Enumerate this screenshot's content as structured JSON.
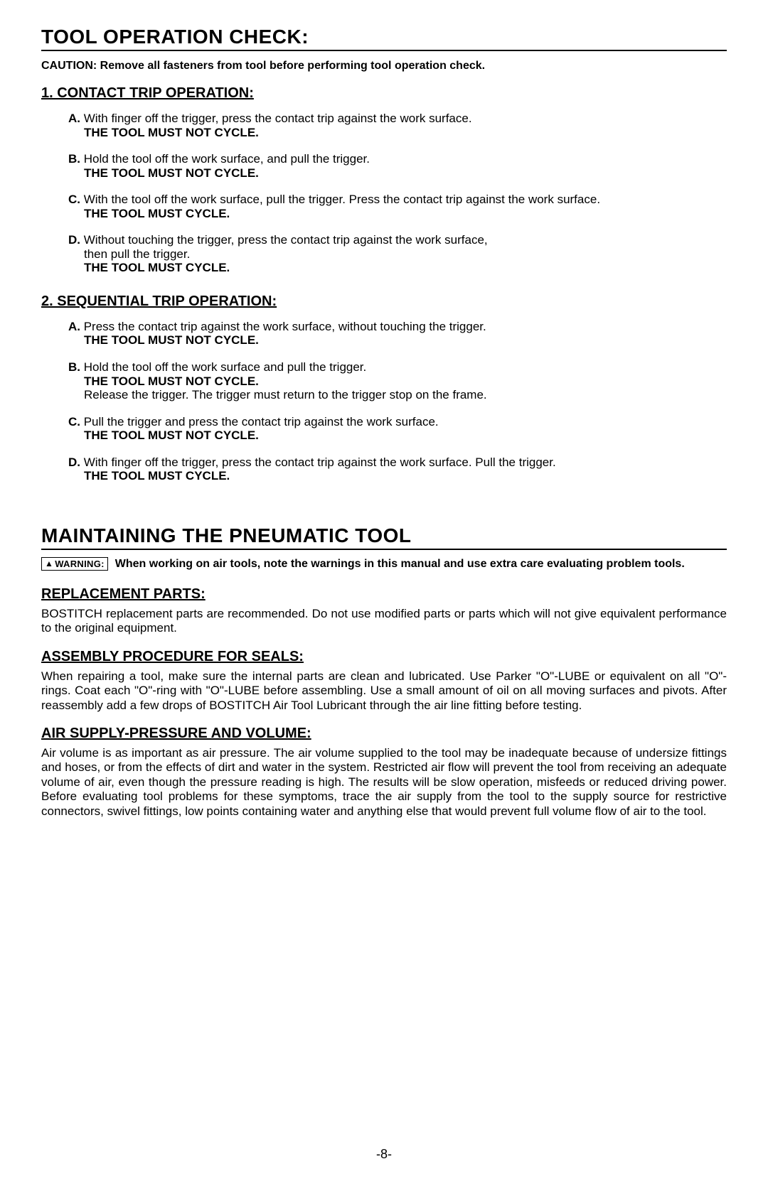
{
  "page_number": "-8-",
  "section1": {
    "title": "TOOL OPERATION CHECK:",
    "caution": "CAUTION:  Remove all fasteners from tool before performing tool operation check.",
    "sub1": {
      "title": "1. CONTACT TRIP OPERATION:",
      "items": [
        {
          "letter": "A.",
          "text": " With finger off the trigger, press the contact trip against the work surface.",
          "result": "THE TOOL MUST NOT CYCLE."
        },
        {
          "letter": "B.",
          "text": " Hold the tool off the work surface, and pull the trigger.",
          "result": "THE TOOL MUST NOT CYCLE."
        },
        {
          "letter": "C.",
          "text": " With the tool off the work surface, pull the trigger. Press the contact trip against the work surface.",
          "result": "THE TOOL MUST CYCLE."
        },
        {
          "letter": "D.",
          "text": " Without touching the trigger, press the contact trip against the work surface,",
          "extra": "then pull the trigger.",
          "result": "THE TOOL MUST CYCLE."
        }
      ]
    },
    "sub2": {
      "title": "2. SEQUENTIAL TRIP OPERATION:",
      "items": [
        {
          "letter": "A.",
          "text": " Press the contact trip against the work surface, without touching the trigger.",
          "result": "THE TOOL MUST NOT CYCLE."
        },
        {
          "letter": "B.",
          "text": " Hold the tool off the work surface and pull the trigger.",
          "result": "THE TOOL MUST NOT CYCLE.",
          "after": "Release the trigger.  The trigger must return to the trigger stop on the frame."
        },
        {
          "letter": "C.",
          "text": " Pull the trigger and press the contact trip against the work surface.",
          "result": "THE TOOL MUST NOT CYCLE."
        },
        {
          "letter": "D.",
          "text": " With finger off the trigger, press the contact trip against the work surface.  Pull the trigger.",
          "result": "THE TOOL MUST CYCLE."
        }
      ]
    }
  },
  "section2": {
    "title": "MAINTAINING THE PNEUMATIC TOOL",
    "warning_label": "WARNING:",
    "warning_text": "When working on air tools, note the warnings in this manual and use extra care evaluating problem tools.",
    "parts": [
      {
        "title": "REPLACEMENT PARTS:",
        "body": "BOSTITCH replacement parts are recommended.  Do not use modified parts or parts which will not give equivalent performance to the original equipment."
      },
      {
        "title": "ASSEMBLY PROCEDURE FOR SEALS:",
        "body": "When repairing a tool, make sure the internal parts are clean and lubricated.  Use Parker \"O\"-LUBE or equivalent on all \"O\"-rings. Coat each \"O\"-ring with \"O\"-LUBE before assembling.  Use a small amount of oil on all moving surfaces and pivots.  After reassembly add a few drops of BOSTITCH Air Tool Lubricant through the air line fitting before testing."
      },
      {
        "title": "AIR SUPPLY-PRESSURE AND VOLUME:",
        "body": "Air volume is as important as air pressure. The air volume supplied to the tool may be inadequate because of undersize fittings and hoses, or from the effects of dirt and water in the system. Restricted air flow will prevent the tool from receiving an adequate volume of air, even though the pressure reading is high. The results will be slow operation, misfeeds or reduced driving power. Before evaluating tool problems for these symptoms, trace the air supply from the tool to the supply source for restrictive connectors, swivel fittings, low points containing water and anything else that would prevent full volume flow of air to the tool."
      }
    ]
  }
}
